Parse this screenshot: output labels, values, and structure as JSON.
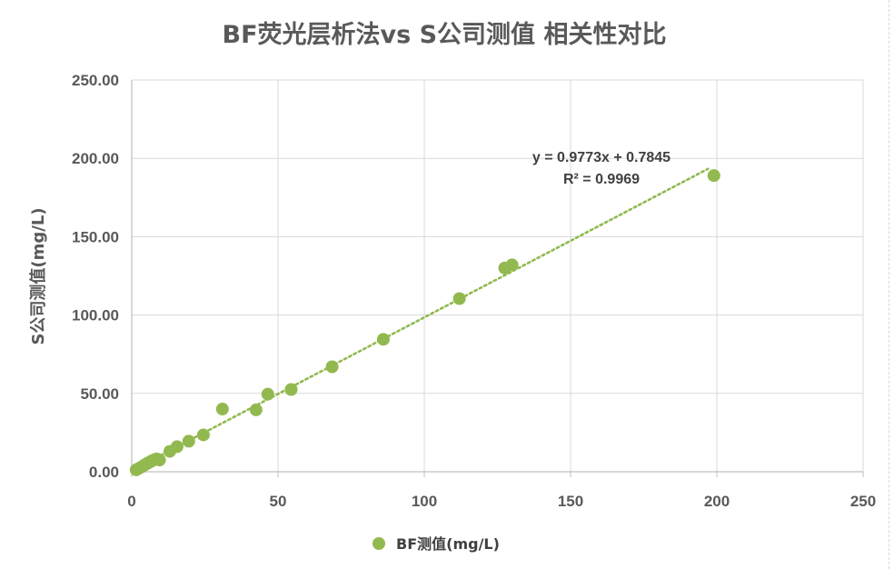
{
  "chart_data": {
    "type": "scatter",
    "title": "BF荧光层析法vs S公司测值 相关性对比",
    "xlabel": "",
    "ylabel": "S公司测值(mg/L)",
    "xlim": [
      0,
      250
    ],
    "ylim": [
      0,
      250
    ],
    "x_ticks": [
      "0",
      "50",
      "100",
      "150",
      "200",
      "250"
    ],
    "y_ticks": [
      "0.00",
      "50.00",
      "100.00",
      "150.00",
      "200.00",
      "250.00"
    ],
    "grid": true,
    "legend_position": "bottom",
    "series": [
      {
        "name": "BF测值(mg/L)",
        "color": "#92b94f",
        "points": [
          {
            "x": 1.5,
            "y": 1.2
          },
          {
            "x": 2.5,
            "y": 2.2
          },
          {
            "x": 3.5,
            "y": 3.2
          },
          {
            "x": 4.5,
            "y": 4.5
          },
          {
            "x": 5.5,
            "y": 5.5
          },
          {
            "x": 6.5,
            "y": 6.5
          },
          {
            "x": 7.5,
            "y": 7.5
          },
          {
            "x": 8.5,
            "y": 8.2
          },
          {
            "x": 9.5,
            "y": 7.5
          },
          {
            "x": 13,
            "y": 13
          },
          {
            "x": 15.5,
            "y": 16
          },
          {
            "x": 19.5,
            "y": 19.5
          },
          {
            "x": 24.5,
            "y": 23.5
          },
          {
            "x": 31,
            "y": 40
          },
          {
            "x": 42.5,
            "y": 39.5
          },
          {
            "x": 46.5,
            "y": 49.5
          },
          {
            "x": 54.5,
            "y": 52.5
          },
          {
            "x": 68.5,
            "y": 67
          },
          {
            "x": 86,
            "y": 84.5
          },
          {
            "x": 112,
            "y": 110.5
          },
          {
            "x": 127.5,
            "y": 130
          },
          {
            "x": 130,
            "y": 132
          },
          {
            "x": 199,
            "y": 189
          }
        ]
      }
    ],
    "trendline": {
      "type": "linear",
      "slope": 0.9773,
      "intercept": 0.7845,
      "x_range": [
        0,
        197
      ],
      "equation_label": "y = 0.9773x + 0.7845",
      "r2_label": "R² = 0.9969"
    }
  }
}
